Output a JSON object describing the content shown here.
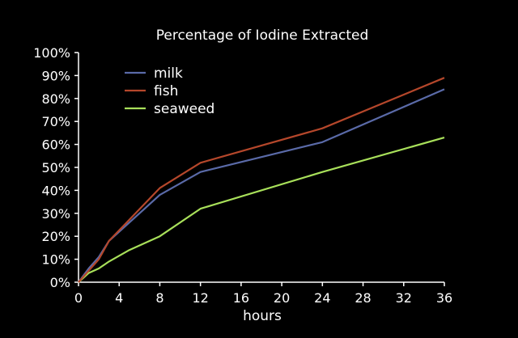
{
  "chart_data": {
    "type": "line",
    "title": "Percentage of Iodine Extracted",
    "xlabel": "hours",
    "ylabel": "",
    "xlim": [
      0,
      36
    ],
    "ylim": [
      0,
      100
    ],
    "x_ticks": [
      "0",
      "4",
      "8",
      "12",
      "16",
      "20",
      "24",
      "28",
      "32",
      "36"
    ],
    "y_ticks": [
      "0%",
      "10%",
      "20%",
      "30%",
      "40%",
      "50%",
      "60%",
      "70%",
      "80%",
      "90%",
      "100%"
    ],
    "grid": false,
    "legend": "top-left",
    "series": [
      {
        "name": "milk",
        "color": "#5a6aa8",
        "points": [
          [
            0,
            0
          ],
          [
            1,
            6
          ],
          [
            2,
            11
          ],
          [
            3,
            18
          ],
          [
            8,
            38
          ],
          [
            12,
            48
          ],
          [
            24,
            61
          ],
          [
            36,
            84
          ]
        ]
      },
      {
        "name": "fish",
        "color": "#b5472b",
        "points": [
          [
            0,
            0
          ],
          [
            1,
            5
          ],
          [
            2,
            10
          ],
          [
            3,
            18
          ],
          [
            8,
            41
          ],
          [
            12,
            52
          ],
          [
            24,
            67
          ],
          [
            36,
            89
          ]
        ]
      },
      {
        "name": "seaweed",
        "color": "#a8e05a",
        "points": [
          [
            0,
            0
          ],
          [
            1,
            4
          ],
          [
            2,
            6
          ],
          [
            3,
            9
          ],
          [
            5,
            14
          ],
          [
            8,
            20
          ],
          [
            12,
            32
          ],
          [
            24,
            48
          ],
          [
            36,
            63
          ]
        ]
      }
    ]
  }
}
